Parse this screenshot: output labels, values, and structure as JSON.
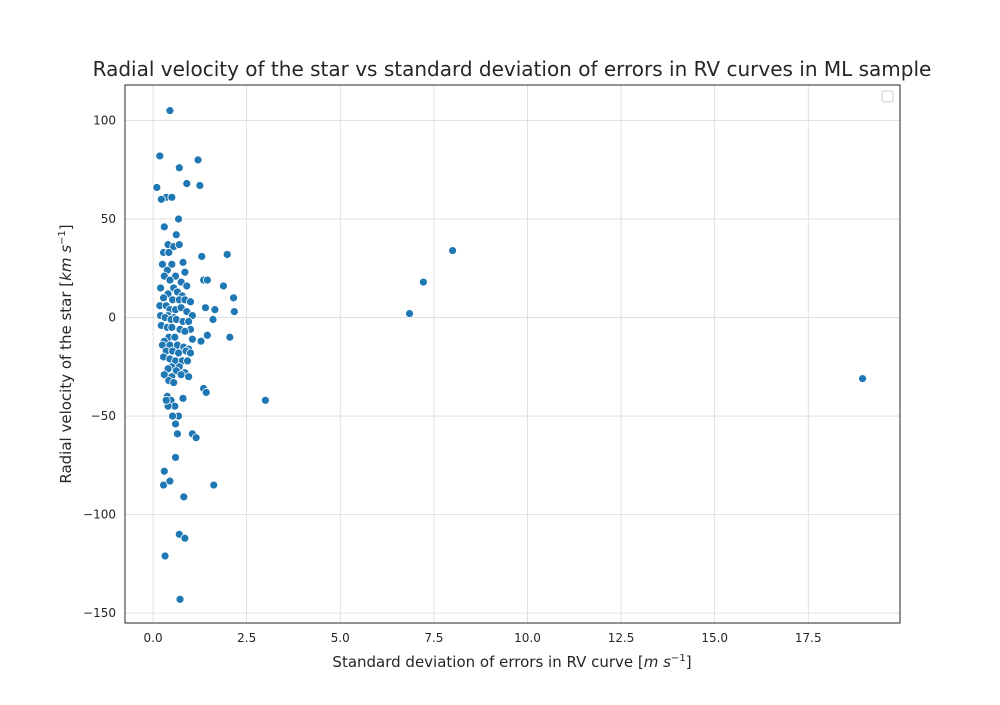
{
  "chart_data": {
    "type": "scatter",
    "title": "Radial velocity of the star vs standard deviation of errors in RV curves in ML sample",
    "xlabel": "Standard deviation of errors in RV curve",
    "xlabel_unit": "m s",
    "xlabel_exp": "−1",
    "ylabel": "Radial velocity of the star",
    "ylabel_unit": "km s",
    "ylabel_exp": "−1",
    "xlim": [
      -0.75,
      19.95
    ],
    "ylim": [
      -155,
      118
    ],
    "xticks": [
      0,
      2.5,
      5,
      7.5,
      10,
      12.5,
      15,
      17.5
    ],
    "xtick_labels": [
      "0.0",
      "2.5",
      "5.0",
      "7.5",
      "10.0",
      "12.5",
      "15.0",
      "17.5"
    ],
    "yticks": [
      -150,
      -100,
      -50,
      0,
      50,
      100
    ],
    "ytick_labels": [
      "−150",
      "−100",
      "−50",
      "0",
      "50",
      "100"
    ],
    "grid": true,
    "legend": "top-right",
    "color": "#1f77b4",
    "x": [
      0.45,
      0.18,
      1.2,
      0.1,
      0.7,
      0.9,
      1.25,
      0.35,
      0.5,
      0.22,
      0.68,
      0.3,
      0.62,
      0.4,
      0.55,
      0.7,
      0.28,
      0.42,
      1.3,
      0.8,
      0.25,
      0.5,
      0.85,
      0.38,
      0.6,
      0.3,
      0.45,
      0.75,
      0.9,
      1.35,
      1.45,
      0.2,
      0.55,
      0.65,
      0.4,
      0.78,
      1.88,
      0.28,
      0.52,
      0.7,
      0.85,
      1.0,
      0.18,
      0.35,
      0.45,
      0.6,
      0.75,
      0.9,
      2.15,
      0.2,
      0.4,
      0.55,
      1.05,
      1.4,
      1.65,
      2.17,
      0.32,
      0.48,
      0.62,
      0.8,
      0.95,
      1.6,
      0.22,
      0.38,
      0.5,
      0.72,
      1.0,
      0.85,
      0.42,
      0.58,
      0.3,
      1.45,
      1.05,
      2.05,
      0.25,
      0.45,
      0.65,
      0.82,
      0.95,
      1.28,
      0.35,
      0.52,
      0.68,
      0.88,
      1.0,
      0.28,
      0.45,
      0.6,
      0.78,
      0.92,
      0.5,
      0.7,
      0.4,
      0.62,
      0.85,
      0.3,
      0.5,
      0.75,
      0.95,
      1.35,
      1.42,
      0.42,
      0.55,
      0.8,
      0.38,
      0.48,
      0.58,
      0.68,
      1.05,
      1.15,
      0.6,
      0.3,
      0.28,
      0.45,
      1.62,
      0.82,
      0.7,
      0.85,
      0.32,
      0.72,
      3.0,
      6.85,
      7.22,
      8.0,
      18.95,
      1.98,
      0.52,
      0.6,
      0.4,
      0.35,
      0.65
    ],
    "y": [
      105,
      82,
      80,
      66,
      76,
      68,
      67,
      61,
      61,
      60,
      50,
      46,
      42,
      37,
      36,
      37,
      33,
      33,
      31,
      28,
      27,
      27,
      23,
      24,
      21,
      21,
      19,
      18,
      16,
      19,
      19,
      15,
      15,
      13,
      12,
      11,
      16,
      10,
      9,
      9,
      9,
      8,
      6,
      6,
      4,
      4,
      5,
      3,
      10,
      1,
      1,
      0,
      1,
      5,
      4,
      3,
      0,
      -1,
      -1,
      -2,
      -2,
      -1,
      -4,
      -5,
      -5,
      -6,
      -6,
      -7,
      -10,
      -10,
      -12,
      -9,
      -11,
      -10,
      -14,
      -14,
      -14,
      -15,
      -16,
      -12,
      -17,
      -17,
      -18,
      -17,
      -18,
      -20,
      -21,
      -22,
      -22,
      -22,
      -25,
      -25,
      -26,
      -27,
      -28,
      -29,
      -30,
      -29,
      -30,
      -36,
      -38,
      -32,
      -33,
      -41,
      -40,
      -42,
      -45,
      -50,
      -59,
      -61,
      -71,
      -78,
      -85,
      -83,
      -85,
      -91,
      -110,
      -112,
      -121,
      -143,
      -42,
      2,
      18,
      34,
      -31,
      32,
      -50,
      -54,
      -45,
      -42,
      -59
    ]
  }
}
